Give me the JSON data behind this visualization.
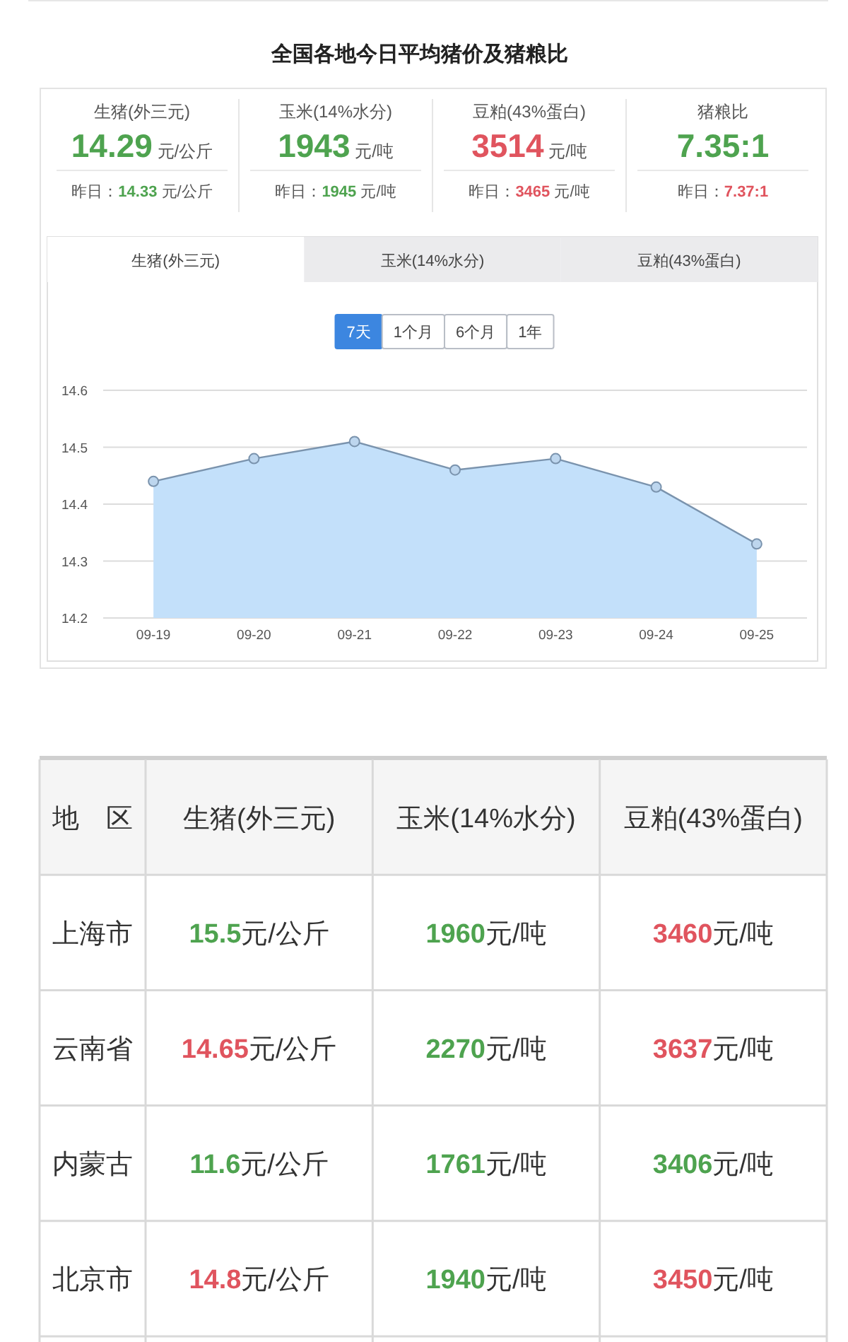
{
  "chart_data": [
    {
      "type": "other",
      "title": "全国各地今日平均猪价及猪粮比",
      "categories": [
        "生猪(外三元)",
        "玉米(14%水分)",
        "豆粕(43%蛋白)",
        "猪粮比"
      ],
      "series": [
        {
          "values": [
            14.29,
            1943,
            3514,
            7.35
          ],
          "value_labels": [
            "14.29",
            "1943",
            "3514",
            "7.35:1"
          ],
          "colors": [
            "#4ea34f",
            "#4ea34f",
            "#e0545e",
            "#4ea34f"
          ]
        },
        {
          "name": "昨日：",
          "values": [
            14.33,
            1945,
            3465,
            7.37
          ],
          "value_labels": [
            "14.33",
            "1945",
            "3465",
            "7.37:1"
          ],
          "colors": [
            "#4ea34f",
            "#4ea34f",
            "#e0545e",
            "#e0545e"
          ]
        }
      ],
      "annotations": [
        "元/公斤",
        "元/吨",
        "元/吨"
      ]
    },
    {
      "type": "area",
      "categories": [
        "09-19",
        "09-20",
        "09-21",
        "09-22",
        "09-23",
        "09-24",
        "09-25"
      ],
      "values": [
        14.44,
        14.48,
        14.51,
        14.46,
        14.48,
        14.43,
        14.33
      ],
      "color": "#c3e0fa",
      "ylim": [
        14.2,
        14.6
      ],
      "yticks": [
        14.2,
        14.3,
        14.4,
        14.5,
        14.6
      ],
      "grid": "y",
      "marker": "circle",
      "annotations": [
        "生猪(外三元)",
        "玉米(14%水分)",
        "豆粕(43%蛋白)",
        "7天",
        "1个月",
        "6个月",
        "1年"
      ]
    },
    {
      "type": "other",
      "ylabel": "地　区",
      "categories": [
        "上海市",
        "云南省",
        "内蒙古",
        "北京市"
      ],
      "series": [
        {
          "name": "生猪(外三元)",
          "values": [
            15.5,
            14.65,
            11.6,
            14.8
          ],
          "value_labels": [
            "15.5",
            "14.65",
            "11.6",
            "14.8"
          ],
          "colors": [
            "#4ea34f",
            "#e0545e",
            "#4ea34f",
            "#e0545e"
          ]
        },
        {
          "name": "玉米(14%水分)",
          "values": [
            1960,
            2270,
            1761,
            1940
          ],
          "value_labels": [
            "1960",
            "2270",
            "1761",
            "1940"
          ],
          "colors": [
            "#4ea34f",
            "#4ea34f",
            "#4ea34f",
            "#4ea34f"
          ]
        },
        {
          "name": "豆粕(43%蛋白)",
          "values": [
            3460,
            3637,
            3406,
            3450
          ],
          "value_labels": [
            "3460",
            "3637",
            "3406",
            "3450"
          ],
          "colors": [
            "#e0545e",
            "#e0545e",
            "#4ea34f",
            "#e0545e"
          ]
        }
      ],
      "annotations": [
        "元/公斤",
        "元/吨",
        "元/吨"
      ]
    }
  ]
}
